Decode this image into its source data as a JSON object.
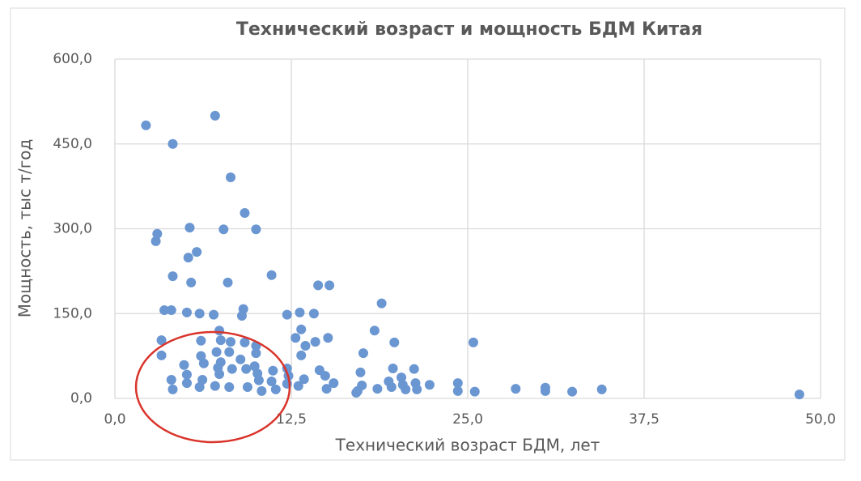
{
  "chart_data": {
    "type": "scatter",
    "title": "Технический возраст и мощность БДМ Китая",
    "x_label": "Технический возраст БДМ, лет",
    "y_label": "Мощность, тыс т/год",
    "color": "#6a96d1",
    "grid": true,
    "xlim": [
      0,
      50
    ],
    "ylim": [
      0,
      600
    ],
    "xticks": [
      {
        "value": 0,
        "label": "0,0"
      },
      {
        "value": 12.5,
        "label": "12,5"
      },
      {
        "value": 25,
        "label": "25,0"
      },
      {
        "value": 37.5,
        "label": "37,5"
      },
      {
        "value": 50,
        "label": "50,0"
      }
    ],
    "yticks": [
      {
        "value": 0,
        "label": "0,0"
      },
      {
        "value": 150,
        "label": "150,0"
      },
      {
        "value": 300,
        "label": "300,0"
      },
      {
        "value": 450,
        "label": "450,0"
      },
      {
        "value": 600,
        "label": "600,0"
      }
    ],
    "x": [
      2.2,
      7.1,
      4.1,
      8.2,
      9.2,
      3.0,
      2.9,
      5.3,
      7.7,
      10.0,
      5.8,
      5.2,
      4.1,
      11.1,
      5.4,
      8.0,
      14.4,
      15.2,
      3.5,
      4.0,
      5.1,
      6.0,
      7.0,
      9.1,
      9.0,
      12.2,
      13.1,
      14.1,
      18.9,
      3.3,
      7.4,
      13.2,
      18.4,
      15.1,
      12.8,
      6.1,
      7.5,
      8.2,
      9.2,
      10.0,
      13.5,
      14.2,
      19.8,
      25.4,
      3.3,
      7.2,
      8.1,
      10.0,
      13.2,
      17.6,
      6.1,
      8.9,
      7.5,
      4.9,
      6.3,
      9.9,
      12.2,
      14.5,
      7.3,
      8.3,
      9.3,
      11.2,
      19.7,
      21.2,
      17.4,
      5.1,
      7.4,
      10.1,
      12.3,
      14.9,
      20.3,
      4.0,
      6.2,
      10.2,
      11.1,
      13.4,
      15.5,
      19.4,
      21.3,
      22.3,
      24.3,
      5.1,
      12.2,
      17.5,
      20.4,
      7.1,
      8.1,
      9.4,
      13.0,
      6.0,
      19.6,
      15.0,
      18.6,
      20.6,
      21.4,
      11.4,
      4.1,
      28.4,
      30.5,
      30.5,
      34.5,
      17.2,
      10.4,
      24.3,
      25.5,
      32.4,
      17.1,
      48.5
    ],
    "values": [
      483,
      500,
      450,
      391,
      328,
      291,
      278,
      302,
      299,
      299,
      259,
      249,
      216,
      218,
      205,
      205,
      200,
      200,
      156,
      156,
      152,
      150,
      148,
      158,
      146,
      148,
      152,
      150,
      168,
      103,
      120,
      122,
      120,
      107,
      107,
      102,
      103,
      100,
      99,
      93,
      93,
      100,
      99,
      99,
      76,
      82,
      82,
      80,
      76,
      80,
      75,
      69,
      64,
      59,
      62,
      57,
      53,
      50,
      54,
      52,
      52,
      49,
      53,
      52,
      46,
      42,
      43,
      44,
      40,
      40,
      37,
      33,
      33,
      32,
      30,
      34,
      27,
      30,
      27,
      24,
      27,
      27,
      26,
      23,
      24,
      22,
      20,
      20,
      22,
      20,
      20,
      17,
      17,
      16,
      16,
      16,
      16,
      17,
      19,
      13,
      16,
      13,
      13,
      13,
      12,
      12,
      10,
      7
    ]
  }
}
